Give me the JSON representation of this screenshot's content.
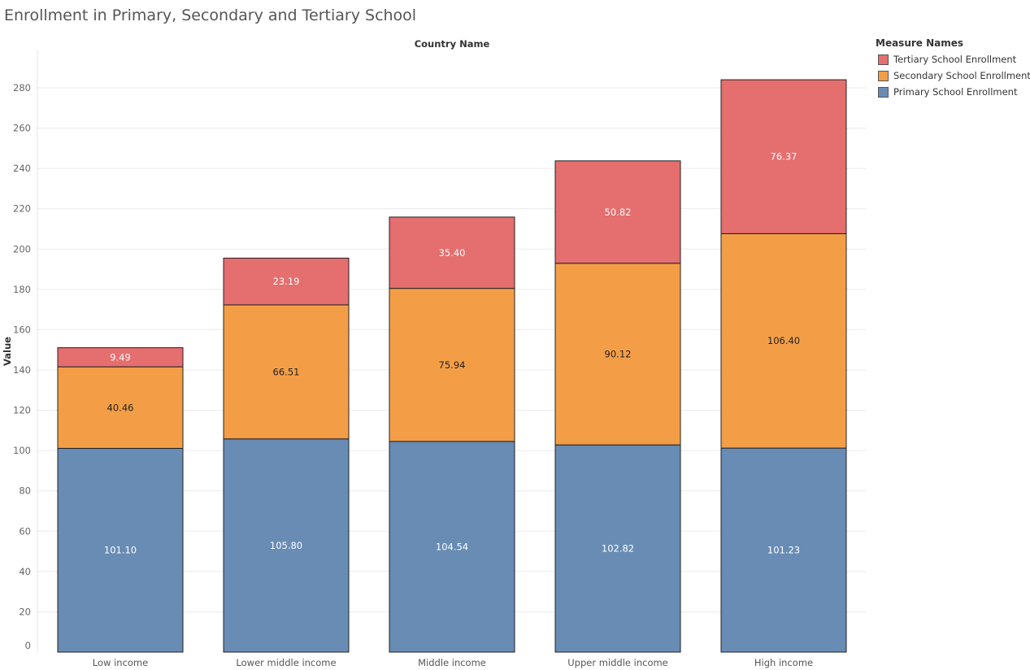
{
  "chart_data": {
    "type": "bar",
    "stacked": true,
    "title": "Enrollment in Primary, Secondary and Tertiary School",
    "column_header": "Country Name",
    "ylabel": "Value",
    "ylim": [
      0,
      290
    ],
    "yticks": [
      0,
      20,
      40,
      60,
      80,
      100,
      120,
      140,
      160,
      180,
      200,
      220,
      240,
      260,
      280
    ],
    "grid": true,
    "categories": [
      "Low income",
      "Lower middle income",
      "Middle income",
      "Upper middle income",
      "High income"
    ],
    "series": [
      {
        "name": "Primary School Enrollment",
        "color": "#688cb4",
        "label_color": "#ffffff",
        "values": [
          101.1,
          105.8,
          104.54,
          102.82,
          101.23
        ]
      },
      {
        "name": "Secondary School Enrollment",
        "color": "#f39e47",
        "label_color": "#222222",
        "values": [
          40.46,
          66.51,
          75.94,
          90.12,
          106.4
        ]
      },
      {
        "name": "Tertiary School Enrollment",
        "color": "#e56e6e",
        "label_color": "#ffffff",
        "values": [
          9.49,
          23.19,
          35.4,
          50.82,
          76.37
        ]
      }
    ],
    "legend": {
      "title": "Measure Names",
      "position": "right",
      "order": [
        "Tertiary School Enrollment",
        "Secondary School Enrollment",
        "Primary School Enrollment"
      ]
    }
  }
}
